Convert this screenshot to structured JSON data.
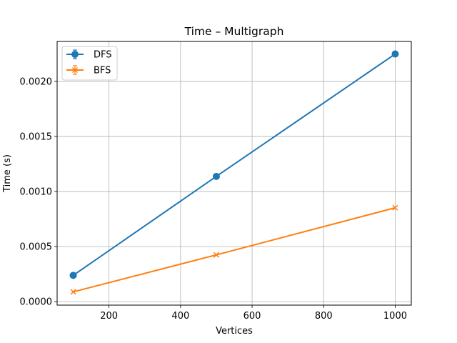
{
  "chart_data": {
    "type": "line",
    "title": "Time – Multigraph",
    "xlabel": "Vertices",
    "ylabel": "Time (s)",
    "x": [
      100,
      500,
      1000
    ],
    "xlim": [
      55,
      1045
    ],
    "ylim": [
      -3.25e-05,
      0.002363
    ],
    "xticks": [
      200,
      400,
      600,
      800,
      1000
    ],
    "xtick_labels": [
      "200",
      "400",
      "600",
      "800",
      "1000"
    ],
    "yticks": [
      0.0,
      0.0005,
      0.001,
      0.0015,
      0.002
    ],
    "ytick_labels": [
      "0.0000",
      "0.0005",
      "0.0010",
      "0.0015",
      "0.0020"
    ],
    "grid": true,
    "legend_position": "upper left",
    "series": [
      {
        "name": "DFS",
        "values": [
          0.000238,
          0.001137,
          0.002249
        ],
        "color": "#1f77b4",
        "marker": "circle"
      },
      {
        "name": "BFS",
        "values": [
          8.8e-05,
          0.000424,
          0.000852
        ],
        "color": "#ff7f0e",
        "marker": "x"
      }
    ]
  }
}
